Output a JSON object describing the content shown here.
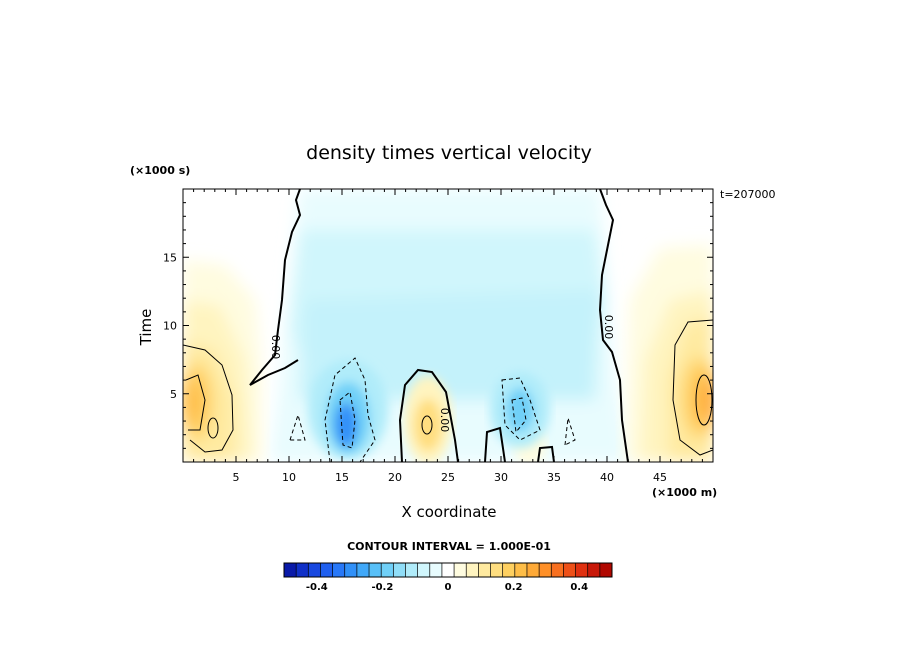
{
  "chart_data": {
    "type": "heatmap",
    "title": "density times vertical velocity",
    "xlabel": "X coordinate",
    "ylabel": "Time",
    "x_unit": "(×1000 m)",
    "y_unit": "(×1000 s)",
    "corner_label": "t=207000",
    "xlim": [
      0,
      50
    ],
    "ylim": [
      0,
      20
    ],
    "x_ticks": [
      5,
      10,
      15,
      20,
      25,
      30,
      35,
      40,
      45
    ],
    "y_ticks": [
      5,
      10,
      15
    ],
    "contour_interval_text": "CONTOUR INTERVAL = 1.000E-01",
    "contour_labels": [
      "0.00",
      "0.00",
      "0.00"
    ],
    "colorbar": {
      "range": [
        -0.5,
        0.5
      ],
      "tick_values": [
        -0.4,
        -0.2,
        0,
        0.2,
        0.4
      ],
      "tick_labels": [
        "-0.4",
        "-0.2",
        "0",
        "0.2",
        "0.4"
      ],
      "colors": [
        "#0a1aa8",
        "#1030c8",
        "#1848e0",
        "#2060f0",
        "#2878f8",
        "#3090f8",
        "#40a8f8",
        "#58c0f8",
        "#70d0f8",
        "#90def8",
        "#b0ecfa",
        "#d0f6fc",
        "#e8fcfe",
        "#ffffff",
        "#fffce0",
        "#fff4c0",
        "#ffeaa0",
        "#ffde80",
        "#ffd060",
        "#ffbe48",
        "#ffaa38",
        "#ff9028",
        "#f87020",
        "#ee5018",
        "#e03010",
        "#c81808",
        "#b00800"
      ]
    },
    "features": [
      {
        "kind": "positive",
        "x": 1.5,
        "y": 4.5,
        "value": 0.25
      },
      {
        "kind": "positive",
        "x": 48.5,
        "y": 4.5,
        "value": 0.28
      },
      {
        "kind": "positive",
        "x": 22.5,
        "y": 3.0,
        "value": 0.12
      },
      {
        "kind": "negative",
        "x": 15.5,
        "y": 3.0,
        "value": -0.27
      },
      {
        "kind": "negative",
        "x": 31.5,
        "y": 4.0,
        "value": -0.14
      },
      {
        "kind": "negative_background",
        "x": 25,
        "y": 10,
        "value": -0.04
      }
    ]
  }
}
